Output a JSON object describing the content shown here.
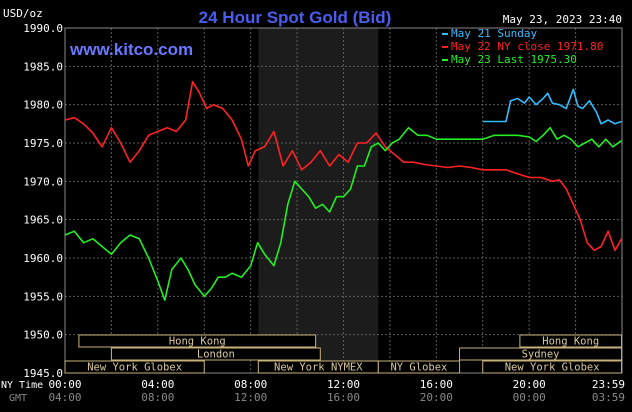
{
  "header": {
    "unit": "USD/oz",
    "title": "24 Hour Spot Gold (Bid)",
    "timestamp": "May 23, 2023 23:40",
    "watermark": "www.kitco.com"
  },
  "colors": {
    "background": "#000000",
    "plot_bg": "#000000",
    "shade": "#1c1c1c",
    "grid": "#5a5a5a",
    "axis_text": "#ffffff",
    "title": "#4b5cf0",
    "watermark": "#6a78ff",
    "gmt_text": "#8a8a8a",
    "market_bar_bg": "#000000",
    "market_bar_border": "#c8b27a",
    "market_text": "#d8c79a"
  },
  "legend": [
    {
      "label": "May 21 Sunday",
      "color": "#33bbff"
    },
    {
      "label": "May 22 NY close 1971.80",
      "color": "#ff2222"
    },
    {
      "label": "May 23 Last 1975.30",
      "color": "#22ee22"
    }
  ],
  "time_axis": {
    "ny_label": "NY Time",
    "gmt_label": "GMT",
    "ny_ticks": [
      "00:00",
      "04:00",
      "08:00",
      "12:00",
      "16:00",
      "20:00",
      "23:59"
    ],
    "gmt_ticks": [
      "04:00",
      "08:00",
      "12:00",
      "16:00",
      "20:00",
      "00:00",
      "03:59"
    ]
  },
  "markets": [
    {
      "label": "Hong Kong",
      "start": 0.6,
      "end": 10.8
    },
    {
      "label": "Hong Kong",
      "start": 19.6,
      "end": 23.98
    },
    {
      "label": "London",
      "start": 2.0,
      "end": 11.0
    },
    {
      "label": "Sydney",
      "start": 17.0,
      "end": 23.98
    },
    {
      "label": "New York Globex",
      "start": 0.0,
      "end": 6.0
    },
    {
      "label": "New York NYMEX",
      "start": 8.33,
      "end": 13.5
    },
    {
      "label": "NY Globex",
      "start": 13.5,
      "end": 17.0
    },
    {
      "label": "New York Globex",
      "start": 18.0,
      "end": 23.98
    }
  ],
  "chart_data": {
    "type": "line",
    "title": "24 Hour Spot Gold (Bid)",
    "ylabel": "USD/oz",
    "xlabel": "NY Time",
    "xlim": [
      0,
      24
    ],
    "ylim": [
      1945,
      1990
    ],
    "yticks": [
      "1945.0",
      "1950.0",
      "1955.0",
      "1960.0",
      "1965.0",
      "1970.0",
      "1975.0",
      "1980.0",
      "1985.0",
      "1990.0"
    ],
    "shaded_x": [
      8.33,
      13.5
    ],
    "grid": true,
    "series": [
      {
        "name": "May 21 Sunday",
        "color": "#33bbff",
        "x": [
          18.0,
          18.6,
          19.0,
          19.2,
          19.5,
          19.8,
          20.0,
          20.3,
          20.6,
          20.8,
          21.0,
          21.3,
          21.6,
          21.9,
          22.1,
          22.3,
          22.6,
          22.9,
          23.1,
          23.4,
          23.7,
          23.98
        ],
        "y": [
          1977.8,
          1977.8,
          1977.8,
          1980.5,
          1980.8,
          1980.2,
          1981.0,
          1980.0,
          1980.8,
          1981.5,
          1980.2,
          1980.0,
          1979.5,
          1982.0,
          1979.8,
          1979.5,
          1980.5,
          1979.0,
          1977.5,
          1978.0,
          1977.5,
          1977.8
        ]
      },
      {
        "name": "May 22 NY close 1971.80",
        "color": "#ff2222",
        "x": [
          0.0,
          0.4,
          0.8,
          1.2,
          1.6,
          2.0,
          2.4,
          2.8,
          3.2,
          3.6,
          4.0,
          4.4,
          4.8,
          5.2,
          5.5,
          5.8,
          6.1,
          6.4,
          6.8,
          7.2,
          7.6,
          7.9,
          8.2,
          8.6,
          9.0,
          9.4,
          9.8,
          10.2,
          10.6,
          11.0,
          11.4,
          11.8,
          12.2,
          12.6,
          13.0,
          13.4,
          13.8,
          14.2,
          14.6,
          15.0,
          15.5,
          16.0,
          16.5,
          17.0,
          17.5,
          18.0,
          18.5,
          19.0,
          19.5,
          20.0,
          20.5,
          21.0,
          21.3,
          21.6,
          21.9,
          22.2,
          22.5,
          22.8,
          23.1,
          23.4,
          23.7,
          23.98
        ],
        "y": [
          1978.0,
          1978.3,
          1977.5,
          1976.3,
          1974.5,
          1977.0,
          1975.0,
          1972.5,
          1974.0,
          1976.0,
          1976.5,
          1977.0,
          1976.5,
          1978.0,
          1983.0,
          1981.5,
          1979.5,
          1980.0,
          1979.5,
          1978.0,
          1975.5,
          1972.0,
          1974.0,
          1974.5,
          1976.5,
          1972.0,
          1974.0,
          1971.5,
          1972.5,
          1974.0,
          1972.0,
          1973.5,
          1972.5,
          1975.0,
          1975.0,
          1976.3,
          1974.5,
          1973.5,
          1972.5,
          1972.5,
          1972.2,
          1972.0,
          1971.8,
          1972.0,
          1971.8,
          1971.5,
          1971.5,
          1971.5,
          1971.0,
          1970.5,
          1970.5,
          1970.0,
          1970.2,
          1969.0,
          1967.0,
          1965.0,
          1962.0,
          1961.0,
          1961.5,
          1963.5,
          1961.0,
          1962.5
        ]
      },
      {
        "name": "May 23 Last 1975.30",
        "color": "#22ee22",
        "x": [
          0.0,
          0.4,
          0.8,
          1.2,
          1.6,
          2.0,
          2.4,
          2.8,
          3.2,
          3.6,
          4.0,
          4.3,
          4.6,
          5.0,
          5.3,
          5.6,
          6.0,
          6.3,
          6.6,
          6.9,
          7.2,
          7.6,
          8.0,
          8.3,
          8.6,
          9.0,
          9.3,
          9.6,
          9.9,
          10.2,
          10.5,
          10.8,
          11.1,
          11.4,
          11.7,
          12.0,
          12.3,
          12.6,
          12.9,
          13.2,
          13.5,
          13.8,
          14.1,
          14.4,
          14.8,
          15.2,
          15.6,
          16.0,
          16.5,
          17.0,
          17.5,
          18.0,
          18.5,
          19.0,
          19.5,
          20.0,
          20.3,
          20.6,
          20.9,
          21.2,
          21.5,
          21.8,
          22.1,
          22.4,
          22.7,
          23.0,
          23.3,
          23.6,
          23.98
        ],
        "y": [
          1963.0,
          1963.5,
          1962.0,
          1962.5,
          1961.5,
          1960.5,
          1962.0,
          1963.0,
          1962.5,
          1960.0,
          1957.0,
          1954.5,
          1958.5,
          1960.0,
          1958.5,
          1956.5,
          1955.0,
          1956.0,
          1957.5,
          1957.5,
          1958.0,
          1957.5,
          1959.0,
          1962.0,
          1960.5,
          1959.0,
          1962.0,
          1967.0,
          1970.0,
          1969.0,
          1968.0,
          1966.5,
          1967.0,
          1966.0,
          1968.0,
          1968.0,
          1969.0,
          1972.0,
          1972.0,
          1974.5,
          1975.0,
          1974.0,
          1975.0,
          1975.5,
          1977.0,
          1976.0,
          1976.0,
          1975.5,
          1975.5,
          1975.5,
          1975.5,
          1975.5,
          1976.0,
          1976.0,
          1976.0,
          1975.8,
          1975.2,
          1976.0,
          1977.0,
          1975.5,
          1976.0,
          1975.5,
          1974.5,
          1975.0,
          1975.5,
          1974.5,
          1975.5,
          1974.5,
          1975.3
        ]
      }
    ]
  }
}
